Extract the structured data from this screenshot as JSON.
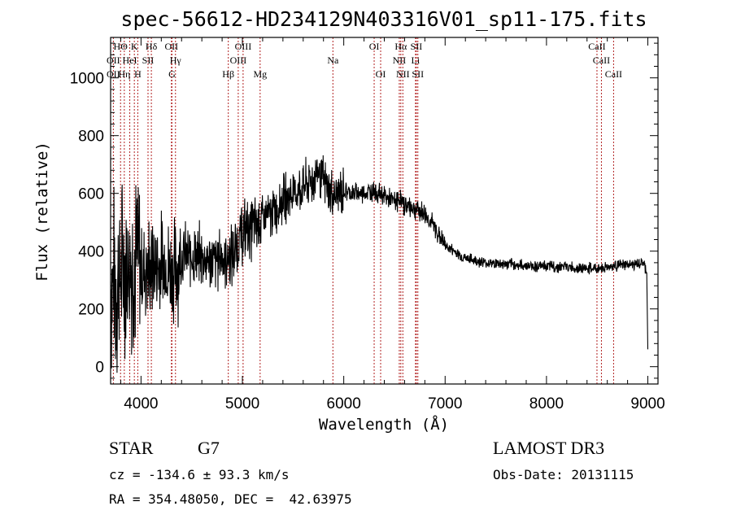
{
  "chart_data": {
    "type": "line",
    "title": "spec-56612-HD234129N403316V01_sp11-175.fits",
    "xlabel": "Wavelength (Å)",
    "ylabel": "Flux (relative)",
    "xlim": [
      3700,
      9100
    ],
    "ylim": [
      -60,
      1140
    ],
    "xticks": [
      4000,
      5000,
      6000,
      7000,
      8000,
      9000
    ],
    "yticks": [
      0,
      200,
      400,
      600,
      800,
      1000
    ],
    "series": [
      {
        "name": "flux",
        "x": [
          3700,
          3750,
          3800,
          3850,
          3900,
          3950,
          4000,
          4050,
          4100,
          4150,
          4200,
          4250,
          4300,
          4350,
          4400,
          4500,
          4600,
          4700,
          4800,
          4900,
          5000,
          5100,
          5200,
          5300,
          5400,
          5500,
          5600,
          5700,
          5750,
          5800,
          5850,
          5900,
          6000,
          6100,
          6200,
          6300,
          6400,
          6500,
          6550,
          6600,
          6700,
          6800,
          6900,
          7000,
          7200,
          7400,
          7600,
          7800,
          8000,
          8200,
          8400,
          8500,
          8600,
          8700,
          8800,
          8900,
          8950,
          8990,
          9000
        ],
        "y": [
          300,
          280,
          320,
          350,
          360,
          380,
          340,
          340,
          330,
          340,
          350,
          360,
          330,
          340,
          390,
          380,
          380,
          360,
          380,
          380,
          470,
          480,
          510,
          530,
          580,
          600,
          620,
          650,
          680,
          640,
          610,
          590,
          610,
          600,
          600,
          610,
          590,
          570,
          580,
          560,
          550,
          530,
          480,
          420,
          375,
          360,
          355,
          350,
          348,
          345,
          340,
          340,
          345,
          350,
          352,
          355,
          360,
          330,
          60
        ]
      }
    ],
    "spectral_lines": [
      {
        "label": "HΘ",
        "x": 3798,
        "row": 1
      },
      {
        "label": "K",
        "x": 3934,
        "row": 1
      },
      {
        "label": "Hδ",
        "x": 4102,
        "row": 1
      },
      {
        "label": "OII",
        "x": 4300,
        "row": 1
      },
      {
        "label": "OIII",
        "x": 5007,
        "row": 1
      },
      {
        "label": "OI",
        "x": 6300,
        "row": 1
      },
      {
        "label": "Hα",
        "x": 6563,
        "row": 1
      },
      {
        "label": "SII",
        "x": 6716,
        "row": 1
      },
      {
        "label": "CaII",
        "x": 8498,
        "row": 1
      },
      {
        "label": "OII",
        "x": 3727,
        "row": 2
      },
      {
        "label": "HeI",
        "x": 3889,
        "row": 2
      },
      {
        "label": "SII",
        "x": 4069,
        "row": 2
      },
      {
        "label": "Hγ",
        "x": 4340,
        "row": 2
      },
      {
        "label": "OIII",
        "x": 4959,
        "row": 2
      },
      {
        "label": "Na",
        "x": 5893,
        "row": 2
      },
      {
        "label": "NII",
        "x": 6548,
        "row": 2
      },
      {
        "label": "Li",
        "x": 6708,
        "row": 2
      },
      {
        "label": "CaII",
        "x": 8542,
        "row": 2
      },
      {
        "label": "OII",
        "x": 3727,
        "row": 3
      },
      {
        "label": "Hη",
        "x": 3835,
        "row": 3
      },
      {
        "label": "H",
        "x": 3968,
        "row": 3
      },
      {
        "label": "G",
        "x": 4305,
        "row": 3
      },
      {
        "label": "Hβ",
        "x": 4861,
        "row": 3
      },
      {
        "label": "Mg",
        "x": 5175,
        "row": 3
      },
      {
        "label": "OI",
        "x": 6364,
        "row": 3
      },
      {
        "label": "NII",
        "x": 6583,
        "row": 3
      },
      {
        "label": "SII",
        "x": 6731,
        "row": 3
      },
      {
        "label": "CaII",
        "x": 8662,
        "row": 3
      }
    ],
    "line_color": "#000000",
    "marker_color": "#b22222"
  },
  "info": {
    "object_class": "STAR",
    "subclass": "G7",
    "survey": "LAMOST DR3",
    "cz": "cz = -134.6 ± 93.3 km/s",
    "obs_date": "Obs-Date: 20131115",
    "radec": "RA = 354.48050, DEC =  42.63975"
  }
}
